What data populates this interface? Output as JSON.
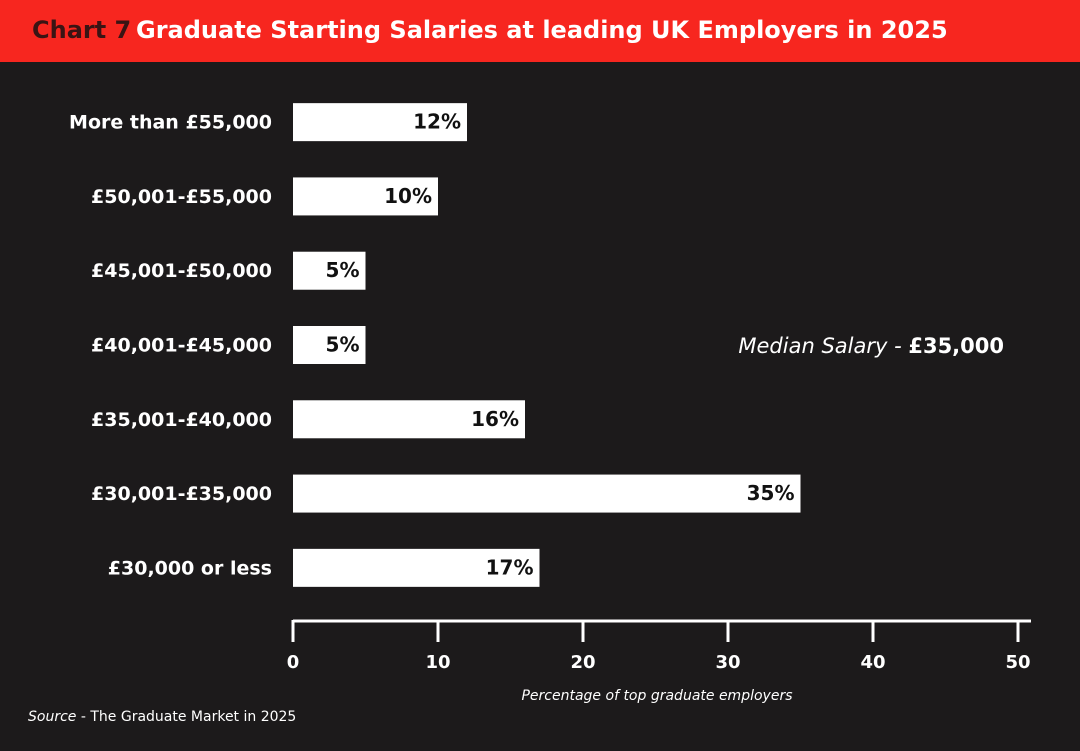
{
  "chart_data": {
    "type": "bar",
    "orientation": "horizontal",
    "chart_label": "Chart 7",
    "title": "Graduate Starting Salaries at leading UK Employers in 2025",
    "categories": [
      "More than £55,000",
      "£50,001-£55,000",
      "£45,001-£50,000",
      "£40,001-£45,000",
      "£35,001-£40,000",
      "£30,001-£35,000",
      "£30,000 or less"
    ],
    "values": [
      12,
      10,
      5,
      5,
      16,
      35,
      17
    ],
    "value_labels": [
      "12%",
      "10%",
      "5%",
      "5%",
      "16%",
      "35%",
      "17%"
    ],
    "color": "#ffffff",
    "xlim": [
      0,
      50
    ],
    "xticks": [
      0,
      10,
      20,
      30,
      40,
      50
    ],
    "x_label": "Percentage of top graduate employers",
    "annotation": {
      "text": "Median Salary - ",
      "value": "£35,000"
    },
    "source": {
      "label": "Source",
      "text": " - The Graduate Market in 2025"
    }
  }
}
